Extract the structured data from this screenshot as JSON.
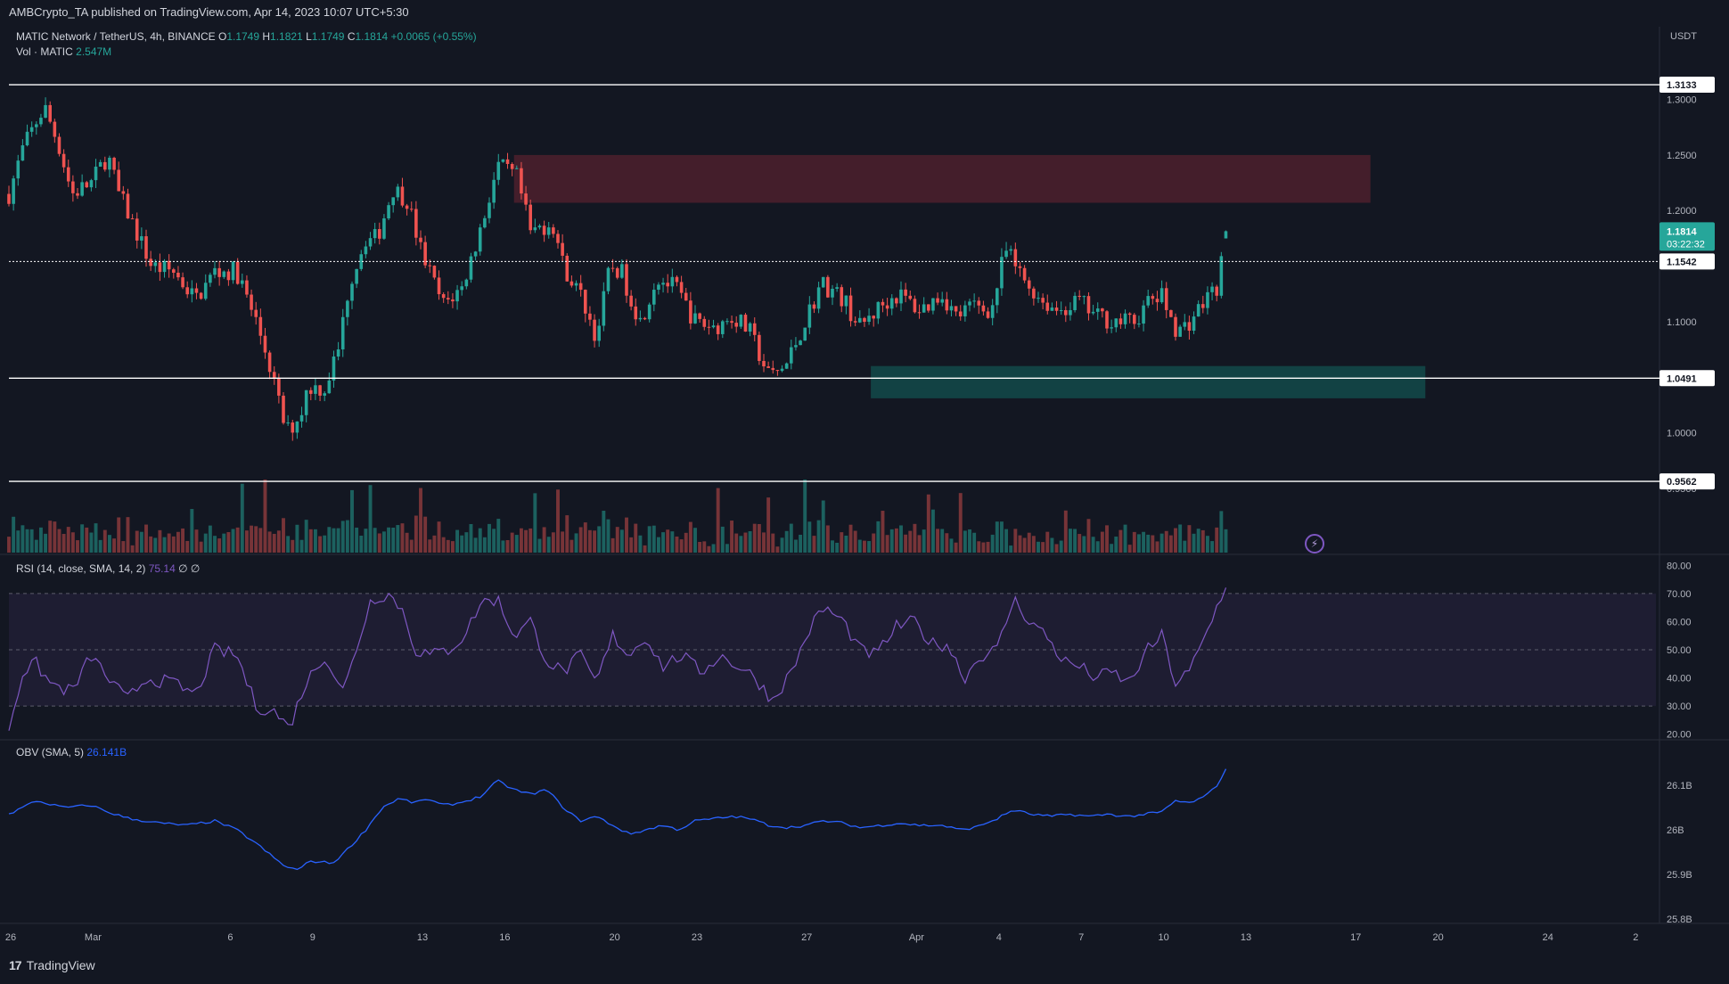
{
  "header": {
    "publisher": "AMBCrypto_TA published on TradingView.com, Apr 14, 2023 10:07 UTC+5:30"
  },
  "legend": {
    "symbol": "MATIC Network / TetherUS, 4h, BINANCE",
    "o_label": "O",
    "o_value": "1.1749",
    "h_label": "H",
    "h_value": "1.1821",
    "l_label": "L",
    "l_value": "1.1749",
    "c_label": "C",
    "c_value": "1.1814",
    "change": "+0.0065 (+0.55%)",
    "vol_label": "Vol · MATIC",
    "vol_value": "2.547M",
    "rsi_label": "RSI (14, close, SMA, 14, 2)",
    "rsi_value": "75.14",
    "rsi_extra": "∅ ∅",
    "obv_label": "OBV (SMA, 5)",
    "obv_value": "26.141B"
  },
  "brand": {
    "name": "TradingView",
    "logo_text": "17"
  },
  "colors": {
    "background": "#131722",
    "up": "#26a69a",
    "down": "#ef5350",
    "up_volume": "#1f6f6a",
    "down_volume": "#8a3a3c",
    "supply_zone": "#4a1f2c",
    "demand_zone": "#134748",
    "rsi_line": "#7e57c2",
    "rsi_band": "#7e57c2",
    "obv_line": "#2962ff",
    "level_line": "#ffffff",
    "axis_text": "#b2b5be"
  },
  "chart_data": {
    "type": "candlestick",
    "x_axis": {
      "tick_labels": [
        "26",
        "Mar",
        "6",
        "9",
        "13",
        "16",
        "20",
        "23",
        "27",
        "Apr",
        "4",
        "7",
        "10",
        "13",
        "17",
        "20",
        "24",
        "2"
      ]
    },
    "price_axis": {
      "unit_label": "USDT",
      "tick_labels": [
        "1.3000",
        "1.2500",
        "1.2000",
        "1.1000",
        "1.0000",
        "0.9500"
      ],
      "ylim": [
        0.937,
        1.335
      ],
      "level_labels": [
        "1.3133",
        "1.1542",
        "1.0491",
        "0.9562"
      ],
      "last_price_label": "1.1814",
      "countdown_label": "03:22:32"
    },
    "rsi_axis": {
      "tick_labels": [
        "80.00",
        "70.00",
        "60.00",
        "50.00",
        "40.00",
        "30.00",
        "20.00"
      ],
      "ylim": [
        18,
        82
      ],
      "band": [
        30,
        70
      ]
    },
    "obv_axis": {
      "tick_labels": [
        "26.1B",
        "26B",
        "25.9B",
        "25.8B"
      ],
      "ylim": [
        25.79,
        26.19
      ]
    },
    "zones": [
      {
        "name": "supply",
        "start_day": 18.4,
        "end_day": 49.6,
        "low": 1.207,
        "high": 1.25
      },
      {
        "name": "demand",
        "start_day": 31.4,
        "end_day": 51.6,
        "low": 1.031,
        "high": 1.06
      }
    ],
    "horizontal_levels": [
      1.3133,
      1.0491,
      0.9562
    ],
    "dotted_levels": [
      1.1542
    ],
    "price_anchors": [
      [
        0,
        1.215
      ],
      [
        0.5,
        1.255
      ],
      [
        1.0,
        1.28
      ],
      [
        1.3,
        1.293
      ],
      [
        1.8,
        1.26
      ],
      [
        2.3,
        1.215
      ],
      [
        3.0,
        1.225
      ],
      [
        3.6,
        1.25
      ],
      [
        4.0,
        1.215
      ],
      [
        4.3,
        1.2
      ],
      [
        5.2,
        1.15
      ],
      [
        6.0,
        1.145
      ],
      [
        6.8,
        1.12
      ],
      [
        7.5,
        1.145
      ],
      [
        8.3,
        1.145
      ],
      [
        9.0,
        1.1
      ],
      [
        9.4,
        1.07
      ],
      [
        10.1,
        1.0
      ],
      [
        10.6,
        1.015
      ],
      [
        10.9,
        1.042
      ],
      [
        11.5,
        1.04
      ],
      [
        12.0,
        1.075
      ],
      [
        12.4,
        1.135
      ],
      [
        13.0,
        1.175
      ],
      [
        13.4,
        1.175
      ],
      [
        14.0,
        1.22
      ],
      [
        14.5,
        1.21
      ],
      [
        15.0,
        1.165
      ],
      [
        15.8,
        1.115
      ],
      [
        16.5,
        1.13
      ],
      [
        17.2,
        1.185
      ],
      [
        17.8,
        1.24
      ],
      [
        18.5,
        1.23
      ],
      [
        19.0,
        1.18
      ],
      [
        19.8,
        1.19
      ],
      [
        20.2,
        1.15
      ],
      [
        20.9,
        1.12
      ],
      [
        21.4,
        1.085
      ],
      [
        21.9,
        1.15
      ],
      [
        22.3,
        1.145
      ],
      [
        23.0,
        1.1
      ],
      [
        23.6,
        1.14
      ],
      [
        24.3,
        1.13
      ],
      [
        25.0,
        1.1
      ],
      [
        25.7,
        1.095
      ],
      [
        26.4,
        1.105
      ],
      [
        27.0,
        1.09
      ],
      [
        27.7,
        1.05
      ],
      [
        28.3,
        1.06
      ],
      [
        29.0,
        1.1
      ],
      [
        29.6,
        1.135
      ],
      [
        30.4,
        1.12
      ],
      [
        31.0,
        1.095
      ],
      [
        31.8,
        1.115
      ],
      [
        32.4,
        1.125
      ],
      [
        33.2,
        1.11
      ],
      [
        34.0,
        1.125
      ],
      [
        34.5,
        1.105
      ],
      [
        35.2,
        1.115
      ],
      [
        35.8,
        1.11
      ],
      [
        36.3,
        1.165
      ],
      [
        36.9,
        1.14
      ],
      [
        37.6,
        1.12
      ],
      [
        38.2,
        1.11
      ],
      [
        39.0,
        1.118
      ],
      [
        39.6,
        1.105
      ],
      [
        40.4,
        1.1
      ],
      [
        41.0,
        1.1
      ],
      [
        41.6,
        1.12
      ],
      [
        42.0,
        1.122
      ],
      [
        42.6,
        1.09
      ],
      [
        43.0,
        1.1
      ],
      [
        43.6,
        1.12
      ],
      [
        44.0,
        1.132
      ],
      [
        44.4,
        1.18
      ]
    ],
    "last_candle": {
      "open": 1.1749,
      "high": 1.1821,
      "low": 1.1749,
      "close": 1.1814
    },
    "rsi_anchors": [
      [
        0,
        22
      ],
      [
        0.5,
        42
      ],
      [
        1.0,
        45
      ],
      [
        1.5,
        38
      ],
      [
        2.3,
        35
      ],
      [
        3.0,
        48
      ],
      [
        3.6,
        40
      ],
      [
        4.3,
        32
      ],
      [
        5.0,
        40
      ],
      [
        6.0,
        38
      ],
      [
        6.8,
        34
      ],
      [
        7.5,
        50
      ],
      [
        8.3,
        48
      ],
      [
        9.0,
        30
      ],
      [
        9.7,
        28
      ],
      [
        10.2,
        22
      ],
      [
        10.8,
        38
      ],
      [
        11.5,
        48
      ],
      [
        12.2,
        35
      ],
      [
        12.7,
        52
      ],
      [
        13.2,
        68
      ],
      [
        13.8,
        70
      ],
      [
        14.3,
        65
      ],
      [
        14.8,
        50
      ],
      [
        15.4,
        48
      ],
      [
        16.0,
        50
      ],
      [
        16.6,
        55
      ],
      [
        17.2,
        67
      ],
      [
        17.8,
        68
      ],
      [
        18.4,
        55
      ],
      [
        19.0,
        60
      ],
      [
        19.6,
        46
      ],
      [
        20.2,
        42
      ],
      [
        20.8,
        48
      ],
      [
        21.4,
        38
      ],
      [
        22.0,
        55
      ],
      [
        22.6,
        48
      ],
      [
        23.2,
        55
      ],
      [
        23.8,
        44
      ],
      [
        24.5,
        48
      ],
      [
        25.2,
        42
      ],
      [
        25.9,
        48
      ],
      [
        26.6,
        44
      ],
      [
        27.2,
        40
      ],
      [
        27.8,
        32
      ],
      [
        28.5,
        42
      ],
      [
        29.2,
        58
      ],
      [
        29.7,
        65
      ],
      [
        30.4,
        60
      ],
      [
        31.0,
        50
      ],
      [
        31.6,
        48
      ],
      [
        32.3,
        58
      ],
      [
        33.0,
        60
      ],
      [
        33.6,
        52
      ],
      [
        34.2,
        52
      ],
      [
        34.8,
        40
      ],
      [
        35.4,
        48
      ],
      [
        36.0,
        50
      ],
      [
        36.6,
        68
      ],
      [
        37.2,
        60
      ],
      [
        37.8,
        55
      ],
      [
        38.4,
        46
      ],
      [
        39.0,
        44
      ],
      [
        39.6,
        40
      ],
      [
        40.2,
        42
      ],
      [
        40.8,
        38
      ],
      [
        41.5,
        50
      ],
      [
        42.0,
        55
      ],
      [
        42.5,
        38
      ],
      [
        43.0,
        42
      ],
      [
        43.6,
        55
      ],
      [
        44.0,
        65
      ],
      [
        44.4,
        75
      ]
    ],
    "obv_anchors": [
      [
        0,
        26.035
      ],
      [
        1.0,
        26.065
      ],
      [
        2.0,
        26.05
      ],
      [
        3.0,
        26.055
      ],
      [
        3.6,
        26.04
      ],
      [
        4.4,
        26.025
      ],
      [
        5.5,
        26.015
      ],
      [
        6.5,
        26.01
      ],
      [
        7.5,
        26.02
      ],
      [
        8.3,
        26.0
      ],
      [
        9.0,
        25.97
      ],
      [
        9.6,
        25.94
      ],
      [
        10.0,
        25.92
      ],
      [
        10.5,
        25.91
      ],
      [
        11.0,
        25.93
      ],
      [
        11.8,
        25.925
      ],
      [
        12.4,
        25.96
      ],
      [
        13.0,
        26.0
      ],
      [
        13.6,
        26.05
      ],
      [
        14.2,
        26.07
      ],
      [
        14.8,
        26.06
      ],
      [
        15.2,
        26.07
      ],
      [
        15.8,
        26.055
      ],
      [
        16.4,
        26.06
      ],
      [
        17.2,
        26.075
      ],
      [
        17.8,
        26.11
      ],
      [
        18.4,
        26.09
      ],
      [
        19.0,
        26.08
      ],
      [
        19.6,
        26.09
      ],
      [
        20.2,
        26.05
      ],
      [
        20.8,
        26.02
      ],
      [
        21.4,
        26.03
      ],
      [
        22.0,
        26.01
      ],
      [
        22.6,
        25.99
      ],
      [
        23.2,
        26.0
      ],
      [
        23.8,
        26.01
      ],
      [
        24.4,
        26.0
      ],
      [
        25.0,
        26.02
      ],
      [
        25.7,
        26.025
      ],
      [
        26.4,
        26.03
      ],
      [
        27.0,
        26.025
      ],
      [
        27.7,
        26.01
      ],
      [
        28.4,
        26.005
      ],
      [
        29.0,
        26.01
      ],
      [
        29.7,
        26.02
      ],
      [
        30.4,
        26.015
      ],
      [
        31.0,
        26.005
      ],
      [
        31.8,
        26.01
      ],
      [
        32.4,
        26.015
      ],
      [
        33.2,
        26.01
      ],
      [
        34.0,
        26.01
      ],
      [
        34.6,
        26.0
      ],
      [
        35.2,
        26.005
      ],
      [
        36.0,
        26.025
      ],
      [
        36.6,
        26.045
      ],
      [
        37.2,
        26.035
      ],
      [
        38.0,
        26.03
      ],
      [
        38.6,
        26.035
      ],
      [
        39.4,
        26.03
      ],
      [
        40.0,
        26.035
      ],
      [
        40.8,
        26.03
      ],
      [
        41.4,
        26.035
      ],
      [
        42.0,
        26.04
      ],
      [
        42.5,
        26.065
      ],
      [
        43.0,
        26.06
      ],
      [
        43.6,
        26.075
      ],
      [
        44.0,
        26.1
      ],
      [
        44.4,
        26.141
      ]
    ]
  }
}
